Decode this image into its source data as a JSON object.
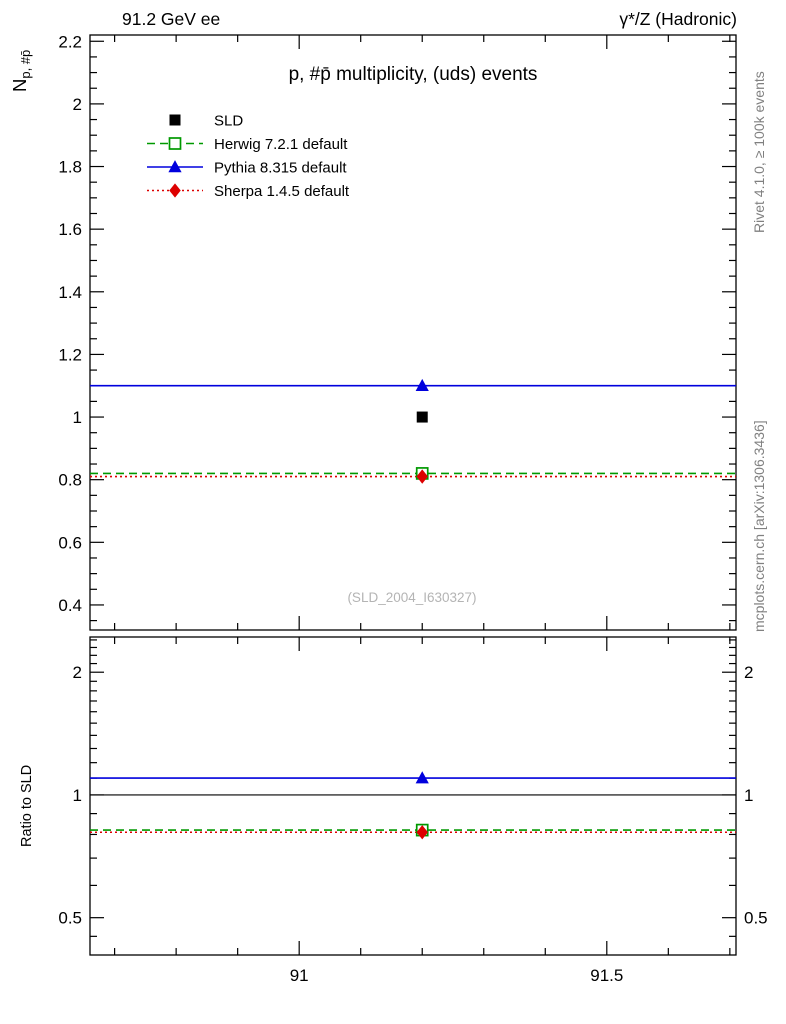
{
  "header": {
    "left": "91.2 GeV ee",
    "right": "γ*/Z (Hadronic)"
  },
  "side_labels": {
    "rivet": "Rivet 4.1.0, ≥ 100k events",
    "mcplots": "mcplots.cern.ch [arXiv:1306.3436]"
  },
  "main_panel": {
    "title": "p, #p̄ multiplicity, (uds) events",
    "ylabel_main": "N",
    "ylabel_sub": "p, #p̄",
    "watermark": "(SLD_2004_I630327)"
  },
  "ratio_panel": {
    "ylabel": "Ratio to SLD"
  },
  "chart_data": [
    {
      "type": "line",
      "title": "p, #p̄ multiplicity, (uds) events",
      "xlabel": "",
      "ylabel": "N_{p, #p̄}",
      "xlim": [
        90.66,
        91.71
      ],
      "ylim": [
        0.32,
        2.22
      ],
      "yticks": [
        0.4,
        0.6,
        0.8,
        1,
        1.2,
        1.4,
        1.6,
        1.8,
        2,
        2.2
      ],
      "ytick_labels": [
        "0.4",
        "0.6",
        "0.8",
        "1",
        "1.2",
        "1.4",
        "1.6",
        "1.8",
        "2",
        "2.2"
      ],
      "yminor_step": 0.05,
      "xticks": [
        91,
        91.5
      ],
      "xtick_labels": [
        "91",
        "91.5"
      ],
      "xminor_step": 0.1,
      "grid": false,
      "legend_position": "top-left",
      "series": [
        {
          "name": "SLD",
          "color": "#000000",
          "marker": "square-filled",
          "line": "none",
          "x": [
            91.2
          ],
          "y": [
            1.0
          ]
        },
        {
          "name": "Herwig 7.2.1 default",
          "color": "#009900",
          "marker": "square-open",
          "line": "dashed",
          "x": [
            91.2
          ],
          "y": [
            0.82
          ]
        },
        {
          "name": "Pythia 8.315 default",
          "color": "#0000dd",
          "marker": "triangle-filled",
          "line": "solid",
          "x": [
            91.2
          ],
          "y": [
            1.1
          ]
        },
        {
          "name": "Sherpa 1.4.5 default",
          "color": "#dd0000",
          "marker": "diamond-filled",
          "line": "dotted",
          "x": [
            91.2
          ],
          "y": [
            0.81
          ]
        }
      ]
    },
    {
      "type": "line",
      "title": "",
      "xlabel": "",
      "ylabel": "Ratio to SLD",
      "yscale": "log",
      "xlim": [
        90.66,
        91.71
      ],
      "ylim": [
        0.405,
        2.44
      ],
      "yticks": [
        0.5,
        1,
        2
      ],
      "ytick_labels": [
        "0.5",
        "1",
        "2"
      ],
      "yminors": [
        0.45,
        0.6,
        0.7,
        0.8,
        0.9,
        1.1,
        1.2,
        1.3,
        1.4,
        1.5,
        1.6,
        1.7,
        1.8,
        1.9,
        2.1,
        2.2,
        2.3,
        2.4
      ],
      "xticks": [
        91,
        91.5
      ],
      "xtick_labels": [
        "91",
        "91.5"
      ],
      "xminor_step": 0.1,
      "reference_line": 1,
      "grid": false,
      "series": [
        {
          "name": "Herwig 7.2.1 default",
          "color": "#009900",
          "marker": "square-open",
          "line": "dashed",
          "x": [
            91.2
          ],
          "y": [
            0.82
          ]
        },
        {
          "name": "Pythia 8.315 default",
          "color": "#0000dd",
          "marker": "triangle-filled",
          "line": "solid",
          "x": [
            91.2
          ],
          "y": [
            1.1
          ]
        },
        {
          "name": "Sherpa 1.4.5 default",
          "color": "#dd0000",
          "marker": "diamond-filled",
          "line": "dotted",
          "x": [
            91.2
          ],
          "y": [
            0.81
          ]
        }
      ]
    }
  ]
}
